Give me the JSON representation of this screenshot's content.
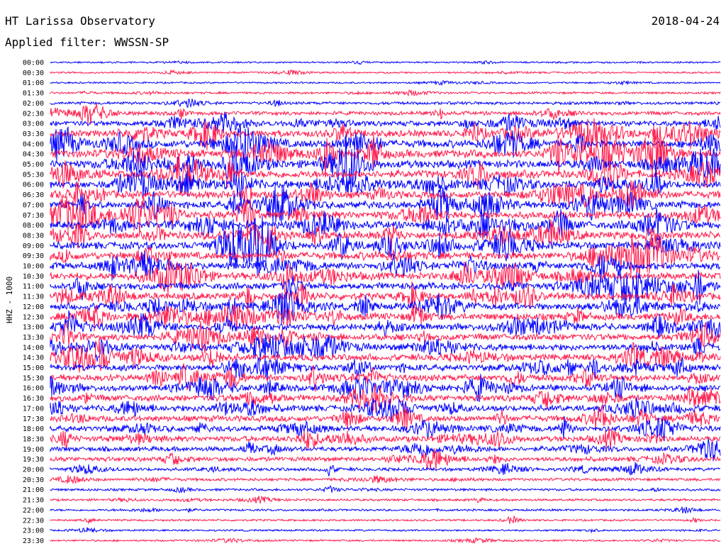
{
  "header": {
    "station": "HT Larissa Observatory",
    "date": "2018-04-24",
    "filter": "Applied filter: WWSSN-SP"
  },
  "chart_data": {
    "type": "line",
    "title": "HT Larissa Observatory",
    "subtitle": "Applied filter: WWSSN-SP",
    "date": "2018-04-24",
    "ylabel": "HHZ - 1000",
    "xlabel": "",
    "row_interval_minutes": 30,
    "rows": [
      "00:00",
      "00:30",
      "01:00",
      "01:30",
      "02:00",
      "02:30",
      "03:00",
      "03:30",
      "04:00",
      "04:30",
      "05:00",
      "05:30",
      "06:00",
      "06:30",
      "07:00",
      "07:30",
      "08:00",
      "08:30",
      "09:00",
      "09:30",
      "10:00",
      "10:30",
      "11:00",
      "11:30",
      "12:00",
      "12:30",
      "13:00",
      "13:30",
      "14:00",
      "14:30",
      "15:00",
      "15:30",
      "16:00",
      "16:30",
      "17:00",
      "17:30",
      "18:00",
      "18:30",
      "19:00",
      "19:30",
      "20:00",
      "20:30",
      "21:00",
      "21:30",
      "22:00",
      "22:30",
      "23:00",
      "23:30"
    ],
    "colors": [
      "#0000ff",
      "#ff1a4b"
    ],
    "relative_activity": [
      0.12,
      0.12,
      0.12,
      0.18,
      0.28,
      0.4,
      0.6,
      0.85,
      0.95,
      1.0,
      1.0,
      0.95,
      0.9,
      0.9,
      0.9,
      0.9,
      0.9,
      0.9,
      0.9,
      0.9,
      0.85,
      0.85,
      0.85,
      0.85,
      0.85,
      0.85,
      0.85,
      0.8,
      0.8,
      0.8,
      0.8,
      0.8,
      0.75,
      0.75,
      0.75,
      0.7,
      0.7,
      0.65,
      0.55,
      0.5,
      0.35,
      0.28,
      0.22,
      0.2,
      0.18,
      0.15,
      0.13,
      0.13
    ],
    "grid": false
  }
}
